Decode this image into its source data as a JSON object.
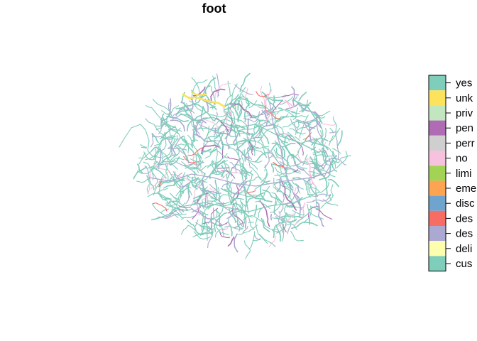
{
  "title": "foot",
  "legend": {
    "items": [
      {
        "label": "yes",
        "color": "#7FCDBB"
      },
      {
        "label": "unk",
        "color": "#FDE35C"
      },
      {
        "label": "priv",
        "color": "#C2E6C0"
      },
      {
        "label": "pen",
        "color": "#AF6CB4"
      },
      {
        "label": "perr",
        "color": "#CFCFCF"
      },
      {
        "label": "no",
        "color": "#F7C2DE"
      },
      {
        "label": "limi",
        "color": "#A2D354"
      },
      {
        "label": "eme",
        "color": "#FDA453"
      },
      {
        "label": "disc",
        "color": "#6EA4CE"
      },
      {
        "label": "des",
        "color": "#F76D63"
      },
      {
        "label": "des",
        "color": "#ABA8D2"
      },
      {
        "label": "deli",
        "color": "#FDFDAE"
      },
      {
        "label": "cus",
        "color": "#7FCDBB"
      }
    ]
  },
  "map": {
    "dominant_color": "#7FCDBB",
    "secondary_colors": [
      "#ABA8D2",
      "#FDE35C",
      "#F76D63",
      "#F7C2DE",
      "#AF6CB4"
    ]
  }
}
